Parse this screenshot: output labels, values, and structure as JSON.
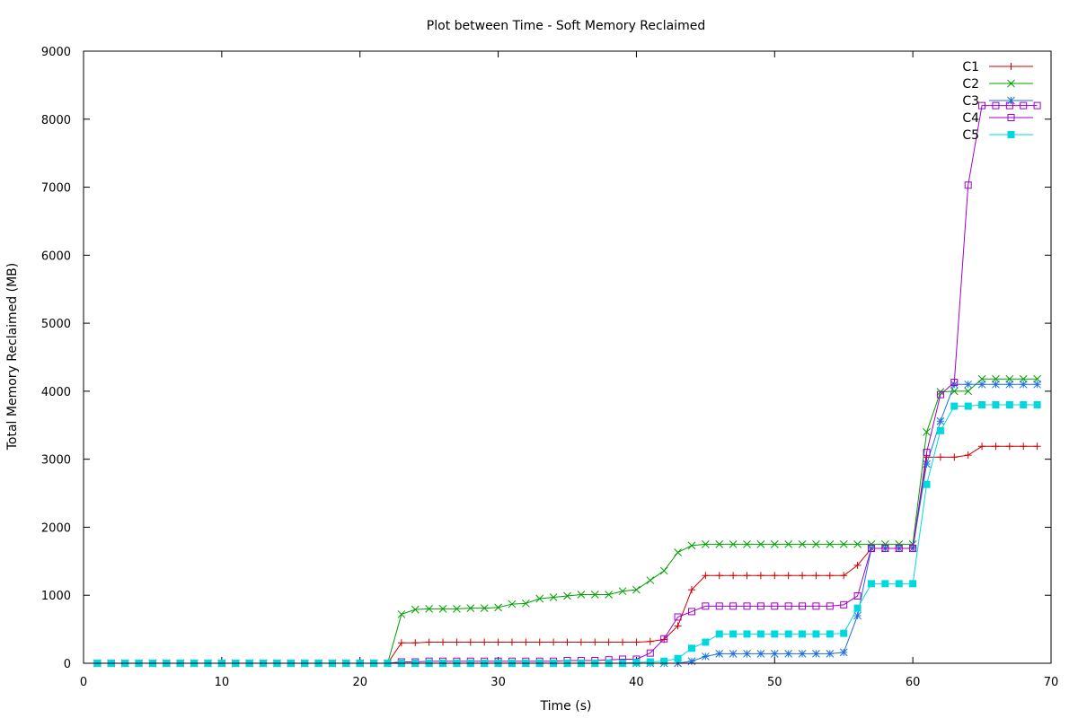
{
  "chart_data": {
    "type": "line",
    "title": "Plot between Time - Soft Memory Reclaimed",
    "xlabel": "Time (s)",
    "ylabel": "Total Memory Reclaimed (MB)",
    "xlim": [
      0,
      70
    ],
    "ylim": [
      0,
      9000
    ],
    "xticks": [
      0,
      10,
      20,
      30,
      40,
      50,
      60,
      70
    ],
    "yticks": [
      0,
      1000,
      2000,
      3000,
      4000,
      5000,
      6000,
      7000,
      8000,
      9000
    ],
    "grid": false,
    "legend_position": "top-right",
    "x": [
      1,
      2,
      3,
      4,
      5,
      6,
      7,
      8,
      9,
      10,
      11,
      12,
      13,
      14,
      15,
      16,
      17,
      18,
      19,
      20,
      21,
      22,
      23,
      24,
      25,
      26,
      27,
      28,
      29,
      30,
      31,
      32,
      33,
      34,
      35,
      36,
      37,
      38,
      39,
      40,
      41,
      42,
      43,
      44,
      45,
      46,
      47,
      48,
      49,
      50,
      51,
      52,
      53,
      54,
      55,
      56,
      57,
      58,
      59,
      60,
      61,
      62,
      63,
      64,
      65,
      66,
      67,
      68,
      69
    ],
    "series": [
      {
        "name": "C1",
        "color": "#cc0000",
        "marker": "plus",
        "values": [
          0,
          0,
          0,
          0,
          0,
          0,
          0,
          0,
          0,
          0,
          0,
          0,
          0,
          0,
          0,
          0,
          0,
          0,
          0,
          0,
          0,
          0,
          300,
          300,
          310,
          310,
          310,
          310,
          310,
          310,
          310,
          310,
          310,
          310,
          310,
          310,
          310,
          310,
          310,
          310,
          320,
          350,
          550,
          1080,
          1290,
          1290,
          1290,
          1290,
          1290,
          1290,
          1290,
          1290,
          1290,
          1290,
          1290,
          1440,
          1690,
          1690,
          1690,
          1690,
          3030,
          3030,
          3030,
          3060,
          3190,
          3190,
          3190,
          3190,
          3190
        ]
      },
      {
        "name": "C2",
        "color": "#00a000",
        "marker": "cross",
        "values": [
          0,
          0,
          0,
          0,
          0,
          0,
          0,
          0,
          0,
          0,
          0,
          0,
          0,
          0,
          0,
          0,
          0,
          0,
          0,
          0,
          0,
          0,
          720,
          790,
          800,
          800,
          800,
          810,
          810,
          820,
          870,
          880,
          950,
          970,
          990,
          1010,
          1010,
          1010,
          1060,
          1080,
          1220,
          1360,
          1630,
          1730,
          1750,
          1750,
          1750,
          1750,
          1750,
          1750,
          1750,
          1750,
          1750,
          1750,
          1750,
          1750,
          1750,
          1750,
          1750,
          1750,
          3400,
          3990,
          4000,
          4000,
          4180,
          4180,
          4180,
          4180,
          4180
        ]
      },
      {
        "name": "C3",
        "color": "#1e6fe0",
        "marker": "star",
        "values": [
          0,
          0,
          0,
          0,
          0,
          0,
          0,
          0,
          0,
          0,
          0,
          0,
          0,
          0,
          0,
          0,
          0,
          0,
          0,
          0,
          0,
          0,
          0,
          0,
          0,
          0,
          0,
          0,
          0,
          0,
          0,
          0,
          0,
          0,
          0,
          0,
          0,
          0,
          0,
          0,
          0,
          0,
          0,
          30,
          100,
          140,
          140,
          140,
          140,
          140,
          140,
          140,
          140,
          140,
          160,
          700,
          1690,
          1690,
          1690,
          1690,
          2930,
          3560,
          4100,
          4100,
          4100,
          4100,
          4100,
          4100,
          4100
        ]
      },
      {
        "name": "C4",
        "color": "#a000c8",
        "marker": "open-square",
        "values": [
          0,
          0,
          0,
          0,
          0,
          0,
          0,
          0,
          0,
          0,
          0,
          0,
          0,
          0,
          0,
          0,
          0,
          0,
          0,
          0,
          0,
          0,
          20,
          20,
          30,
          30,
          30,
          30,
          30,
          30,
          30,
          30,
          30,
          30,
          40,
          40,
          40,
          50,
          60,
          60,
          150,
          360,
          680,
          760,
          840,
          840,
          840,
          840,
          840,
          840,
          840,
          840,
          840,
          840,
          860,
          990,
          1690,
          1690,
          1690,
          1690,
          3100,
          3950,
          4130,
          7030,
          8200,
          8200,
          8200,
          8200,
          8200
        ]
      },
      {
        "name": "C5",
        "color": "#00d8e0",
        "marker": "filled-square",
        "values": [
          0,
          0,
          0,
          0,
          0,
          0,
          0,
          0,
          0,
          0,
          0,
          0,
          0,
          0,
          0,
          0,
          0,
          0,
          0,
          0,
          0,
          0,
          0,
          0,
          0,
          0,
          0,
          0,
          0,
          0,
          0,
          0,
          0,
          0,
          0,
          0,
          0,
          0,
          0,
          10,
          20,
          30,
          70,
          220,
          310,
          430,
          430,
          430,
          430,
          430,
          430,
          430,
          430,
          430,
          440,
          810,
          1170,
          1170,
          1170,
          1170,
          2630,
          3420,
          3780,
          3780,
          3800,
          3800,
          3800,
          3800,
          3800
        ]
      }
    ]
  }
}
